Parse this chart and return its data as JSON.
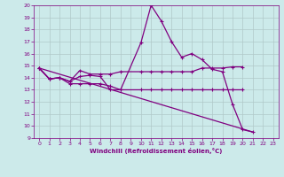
{
  "bg_color": "#cceaea",
  "line_color": "#800080",
  "grid_color": "#b0c8c8",
  "xlabel": "Windchill (Refroidissement éolien,°C)",
  "xlim": [
    -0.5,
    23.5
  ],
  "ylim": [
    9,
    20
  ],
  "xticks": [
    0,
    1,
    2,
    3,
    4,
    5,
    6,
    7,
    8,
    9,
    10,
    11,
    12,
    13,
    14,
    15,
    16,
    17,
    18,
    19,
    20,
    21,
    22,
    23
  ],
  "yticks": [
    9,
    10,
    11,
    12,
    13,
    14,
    15,
    16,
    17,
    18,
    19,
    20
  ],
  "lines": [
    {
      "x": [
        0,
        1,
        2,
        3,
        4,
        5,
        6,
        7,
        8,
        10,
        11,
        12,
        13,
        14,
        15,
        16,
        17,
        18,
        19,
        20,
        21
      ],
      "y": [
        14.8,
        13.9,
        14.0,
        13.7,
        14.1,
        14.2,
        14.1,
        13.0,
        13.0,
        16.9,
        20.0,
        18.7,
        17.0,
        15.7,
        16.0,
        15.5,
        14.7,
        14.5,
        11.8,
        9.7,
        9.5
      ]
    },
    {
      "x": [
        0,
        1,
        2,
        3,
        4,
        5,
        6,
        7,
        8,
        10,
        11,
        12,
        13,
        14,
        15,
        16,
        17,
        18,
        19,
        20
      ],
      "y": [
        14.8,
        13.9,
        14.0,
        13.7,
        14.6,
        14.3,
        14.3,
        14.3,
        14.5,
        14.5,
        14.5,
        14.5,
        14.5,
        14.5,
        14.5,
        14.8,
        14.8,
        14.8,
        14.9,
        14.9
      ]
    },
    {
      "x": [
        0,
        1,
        2,
        3,
        4,
        5,
        6,
        7,
        8,
        10,
        11,
        12,
        13,
        14,
        15,
        16,
        17,
        18,
        19,
        20
      ],
      "y": [
        14.8,
        13.9,
        14.0,
        13.5,
        13.5,
        13.5,
        13.5,
        13.3,
        13.0,
        13.0,
        13.0,
        13.0,
        13.0,
        13.0,
        13.0,
        13.0,
        13.0,
        13.0,
        13.0,
        13.0
      ]
    },
    {
      "x": [
        0,
        21
      ],
      "y": [
        14.8,
        9.5
      ],
      "no_marker": true
    }
  ]
}
